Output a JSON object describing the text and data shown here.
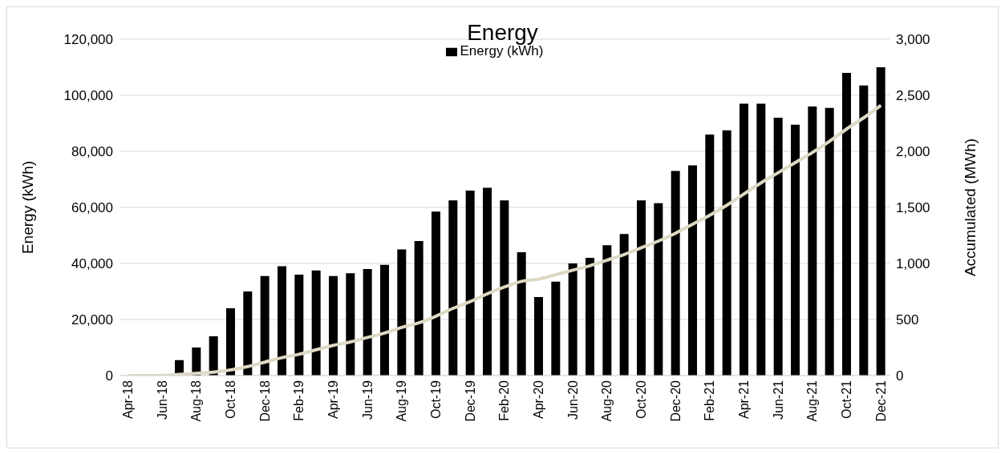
{
  "chart_data": {
    "type": "bar",
    "title": "Energy",
    "ylabel": "Energy (kWh)",
    "y2label": "Accumulated (MWh)",
    "categories": [
      "Apr-18",
      null,
      "Jun-18",
      null,
      "Aug-18",
      null,
      "Oct-18",
      null,
      "Dec-18",
      null,
      "Feb-19",
      null,
      "Apr-19",
      null,
      "Jun-19",
      null,
      "Aug-19",
      null,
      "Oct-19",
      null,
      "Dec-19",
      null,
      "Feb-20",
      null,
      "Apr-20",
      null,
      "Jun-20",
      null,
      "Aug-20",
      null,
      "Oct-20",
      null,
      "Dec-20",
      null,
      "Feb-21",
      null,
      "Apr-21",
      null,
      "Jun-21",
      null,
      "Aug-21",
      null,
      "Oct-21",
      null,
      "Dec-21"
    ],
    "series": [
      {
        "name": "Energy (kWh)",
        "color": "#000000",
        "values": [
          0,
          null,
          null,
          5500,
          10000,
          14000,
          24000,
          30000,
          35500,
          39000,
          36000,
          37500,
          35500,
          36500,
          38000,
          39500,
          45000,
          48000,
          58500,
          62500,
          66000,
          67000,
          62500,
          44000,
          28000,
          33500,
          40000,
          42000,
          46500,
          50500,
          62500,
          61500,
          73000,
          75000,
          86000,
          87500,
          97000,
          97000,
          92000,
          89500,
          96000,
          95500,
          108000,
          103500,
          110000
        ]
      },
      {
        "type": "line",
        "axis": "y2",
        "color": "#ddd9c3",
        "values": [
          0,
          0,
          0,
          10,
          20,
          30,
          50,
          80,
          120,
          160,
          190,
          230,
          270,
          300,
          340,
          380,
          430,
          470,
          530,
          600,
          660,
          730,
          790,
          840,
          860,
          900,
          940,
          980,
          1030,
          1080,
          1140,
          1200,
          1270,
          1350,
          1430,
          1520,
          1620,
          1720,
          1810,
          1900,
          1990,
          2090,
          2200,
          2300,
          2410
        ]
      }
    ],
    "ylim": [
      0,
      120000
    ],
    "yticks": [
      0,
      {
        "value": 20000,
        "label": "20,000"
      },
      {
        "value": 40000,
        "label": "40,000"
      },
      {
        "value": 60000,
        "label": "60,000"
      },
      {
        "value": 80000,
        "label": "80,000"
      },
      {
        "value": 100000,
        "label": "100,000"
      },
      {
        "value": 120000,
        "label": "120,000"
      }
    ],
    "y2lim": [
      0,
      3000
    ],
    "y2ticks": [
      0,
      500,
      {
        "value": 1000,
        "label": "1,000"
      },
      {
        "value": 1500,
        "label": "1,500"
      },
      {
        "value": 2000,
        "label": "2,000"
      },
      {
        "value": 2500,
        "label": "2,500"
      },
      {
        "value": 3000,
        "label": "3,000"
      }
    ],
    "grid": "y",
    "legend": "top",
    "marker": "none"
  }
}
